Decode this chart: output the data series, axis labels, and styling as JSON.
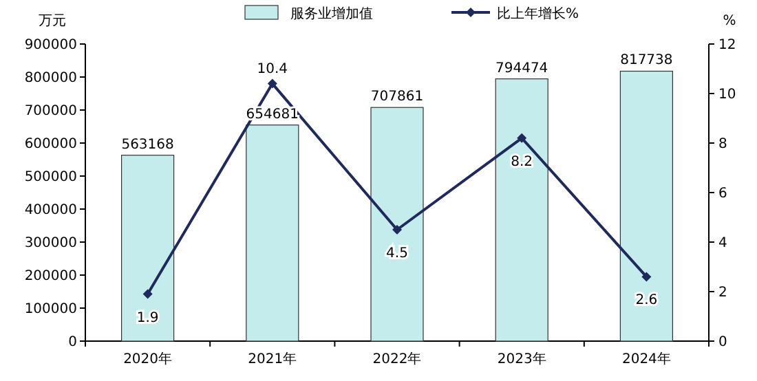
{
  "chart_data": {
    "type": "bar",
    "ylabel": "万元",
    "y2label": "%",
    "categories": [
      "2020年",
      "2021年",
      "2022年",
      "2023年",
      "2024年"
    ],
    "series": [
      {
        "name": "服务业增加值",
        "color": "#c4ecec",
        "values": [
          563168,
          654681,
          707861,
          794474,
          817738
        ]
      },
      {
        "name": "比上年增长%",
        "type": "line",
        "axis": "y2",
        "color": "#1f2a5c",
        "values": [
          1.9,
          10.4,
          4.5,
          8.2,
          2.6
        ]
      }
    ],
    "ylim": [
      0,
      900000
    ],
    "yticks": [
      0,
      100000,
      200000,
      300000,
      400000,
      500000,
      600000,
      700000,
      800000,
      900000
    ],
    "y2lim": [
      0,
      12
    ],
    "y2ticks": [
      0,
      2,
      4,
      6,
      8,
      10,
      12
    ],
    "data_labels": true,
    "legend": "top",
    "grid": false,
    "marker": "diamond",
    "line_style": "solid"
  }
}
